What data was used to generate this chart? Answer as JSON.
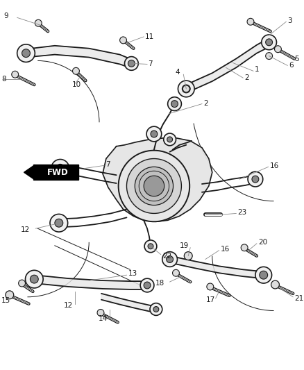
{
  "bg_color": "#ffffff",
  "line_color": "#1a1a1a",
  "label_color": "#1a1a1a",
  "lw_arm": 1.4,
  "lw_thin": 0.7,
  "lw_bolt": 2.2,
  "figsize": [
    4.38,
    5.33
  ],
  "dpi": 100
}
